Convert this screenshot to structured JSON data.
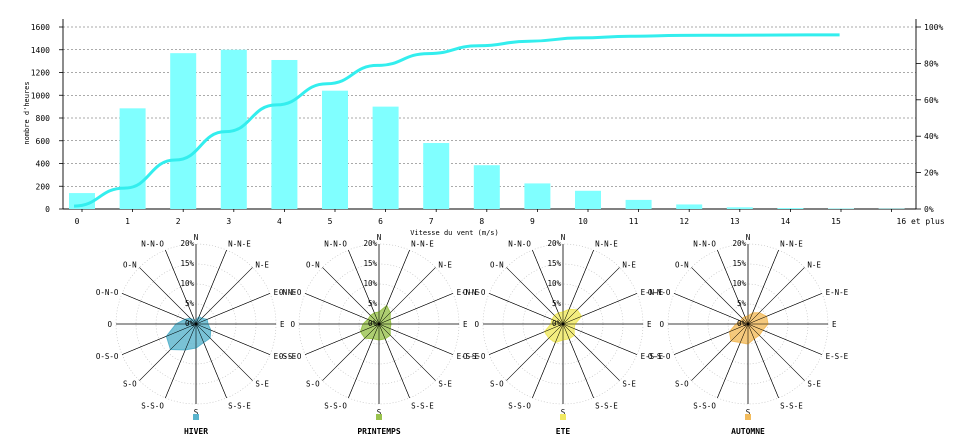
{
  "chart_data": [
    {
      "type": "bar",
      "xlabel": "Vitesse du vent (m/s)",
      "ylabel": "nombre d'heures",
      "categories": [
        "0",
        "1",
        "2",
        "3",
        "4",
        "5",
        "6",
        "7",
        "8",
        "9",
        "10",
        "11",
        "12",
        "13",
        "14",
        "15",
        "16 et plus"
      ],
      "ylim": [
        0,
        1600
      ],
      "yticks": [
        0,
        200,
        400,
        600,
        800,
        1000,
        1200,
        1400,
        1600
      ],
      "y2lim": [
        0,
        100
      ],
      "y2ticks": [
        "0%",
        "20%",
        "40%",
        "60%",
        "80%",
        "100%"
      ],
      "grid": true,
      "series": [
        {
          "type": "bar",
          "color": "#80ffff",
          "values": [
            140,
            885,
            1370,
            1400,
            1310,
            1040,
            900,
            580,
            385,
            225,
            160,
            80,
            40,
            15,
            8,
            4,
            3
          ]
        },
        {
          "type": "line",
          "color": "#33eeee",
          "axis": "right",
          "values": [
            1.6,
            11.5,
            26.9,
            42.5,
            57.2,
            68.8,
            78.9,
            85.4,
            89.7,
            92.2,
            94.0,
            94.9,
            95.4,
            95.5,
            95.6,
            95.7,
            95.7
          ]
        }
      ]
    },
    {
      "type": "rose",
      "season": "HIVER",
      "color": "#59b3cc",
      "directions": [
        "N",
        "N-N-E",
        "N-E",
        "E-N-E",
        "E",
        "E-S-E",
        "S-E",
        "S-S-E",
        "S",
        "S-S-O",
        "S-O",
        "O-S-O",
        "O",
        "O-N-O",
        "O-N",
        "N-N-O"
      ],
      "radial_ticks": [
        "0%",
        "5%",
        "10%",
        "15%",
        "20%"
      ],
      "values": [
        1,
        2,
        2,
        3,
        3,
        4,
        5,
        5,
        6,
        7,
        9,
        8,
        5,
        3,
        2,
        1
      ]
    },
    {
      "type": "rose",
      "season": "PRINTEMPS",
      "color": "#99c24d",
      "directions": [
        "N",
        "N-N-E",
        "N-E",
        "E-N-E",
        "E",
        "E-S-E",
        "S-E",
        "S-S-E",
        "S",
        "S-S-O",
        "S-O",
        "O-S-O",
        "O",
        "O-N-O",
        "O-N",
        "N-N-O"
      ],
      "radial_ticks": [
        "0%",
        "5%",
        "10%",
        "15%",
        "20%"
      ],
      "values": [
        3,
        5,
        4,
        3,
        3,
        3,
        4,
        4,
        4,
        4,
        5,
        5,
        4,
        3,
        3,
        3
      ]
    },
    {
      "type": "rose",
      "season": "ETE",
      "color": "#f0e860",
      "directions": [
        "N",
        "N-N-E",
        "N-E",
        "E-N-E",
        "E",
        "E-S-E",
        "S-E",
        "S-S-E",
        "S",
        "S-S-O",
        "S-O",
        "O-S-O",
        "O",
        "O-N-O",
        "O-N",
        "N-N-O"
      ],
      "radial_ticks": [
        "0%",
        "5%",
        "10%",
        "15%",
        "20%"
      ],
      "values": [
        3,
        4,
        5,
        5,
        3,
        3,
        4,
        4,
        4,
        5,
        5,
        5,
        3,
        3,
        3,
        3
      ]
    },
    {
      "type": "rose",
      "season": "AUTOMNE",
      "color": "#f2bb5c",
      "directions": [
        "N",
        "N-N-E",
        "N-E",
        "E-N-E",
        "E",
        "E-S-E",
        "S-E",
        "S-S-E",
        "S",
        "S-S-O",
        "S-O",
        "O-S-O",
        "O",
        "O-N-O",
        "O-N",
        "N-N-O"
      ],
      "radial_ticks": [
        "0%",
        "5%",
        "10%",
        "15%",
        "20%"
      ],
      "values": [
        2,
        3,
        4,
        5,
        5,
        4,
        4,
        4,
        5,
        5,
        6,
        5,
        3,
        2,
        2,
        2
      ]
    }
  ]
}
